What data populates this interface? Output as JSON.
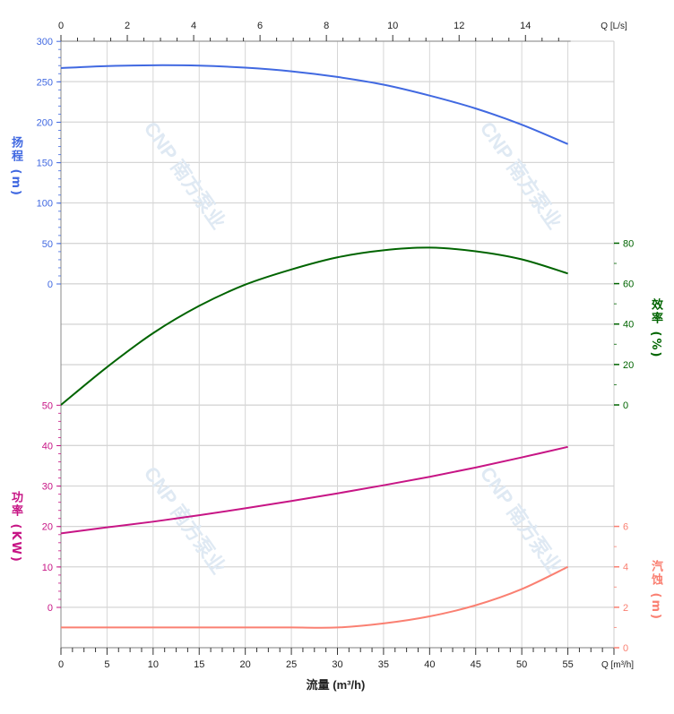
{
  "chart_data": {
    "type": "line",
    "xlabel": "流量 (m³/h)",
    "x_unit_label": "Q [m³/h]",
    "x_top_unit_label": "Q [L/s]",
    "xlim": [
      0,
      60
    ],
    "x_ticks": [
      0,
      5,
      10,
      15,
      20,
      25,
      30,
      35,
      40,
      45,
      50,
      55
    ],
    "x_top_ticks": [
      0,
      2,
      4,
      6,
      8,
      10,
      12,
      14
    ],
    "x": [
      0,
      5,
      10,
      15,
      20,
      25,
      30,
      35,
      40,
      45,
      50,
      55
    ],
    "grid": true,
    "watermark": "CNP 南方泵业",
    "series": [
      {
        "name": "扬程 (m)",
        "axis": "head",
        "color": "#4169e1",
        "ylim": [
          0,
          300
        ],
        "y_ticks": [
          0,
          50,
          100,
          150,
          200,
          250,
          300
        ],
        "values": [
          267,
          269.5,
          270.5,
          270,
          267.5,
          263,
          256,
          246.5,
          233,
          217,
          197,
          173
        ]
      },
      {
        "name": "效率 (%)",
        "axis": "efficiency",
        "color": "#006400",
        "ylim": [
          0,
          80
        ],
        "y_ticks": [
          0,
          20,
          40,
          60,
          80
        ],
        "values": [
          0,
          18.7,
          35.5,
          49,
          59.5,
          67,
          73,
          76.5,
          77.8,
          76,
          72,
          65
        ]
      },
      {
        "name": "功率 (KW)",
        "axis": "power",
        "color": "#c71585",
        "ylim": [
          0,
          50
        ],
        "y_ticks": [
          0,
          10,
          20,
          30,
          40,
          50
        ],
        "values": [
          18.3,
          19.8,
          21.2,
          22.8,
          24.5,
          26.3,
          28.2,
          30.2,
          32.3,
          34.6,
          37.1,
          39.7
        ]
      },
      {
        "name": "汽蚀 (m)",
        "axis": "npsh",
        "color": "#fa8072",
        "ylim": [
          0,
          6
        ],
        "y_ticks": [
          0,
          2,
          4,
          6
        ],
        "values": [
          1,
          1,
          1,
          1,
          1,
          1,
          1,
          1.2,
          1.55,
          2.1,
          2.9,
          4
        ]
      }
    ]
  },
  "labels": {
    "head": "扬程 (m)",
    "efficiency": "效率 (%)",
    "power": "功率 (KW)",
    "npsh": "汽蚀 (m)"
  }
}
